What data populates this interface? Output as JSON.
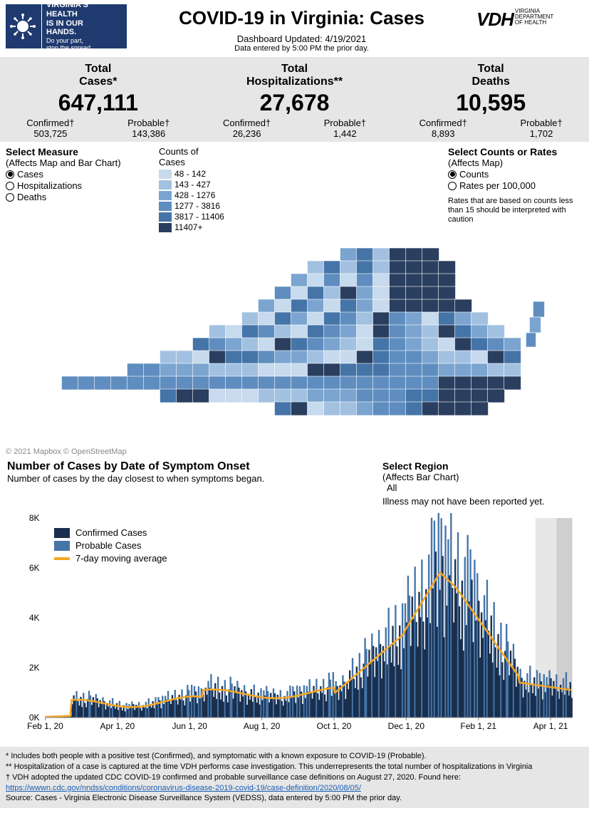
{
  "logo": {
    "line1": "VIRGINIA'S",
    "line2": "HEALTH",
    "line3": "IS IN OUR",
    "line4": "HANDS.",
    "line5": "Do your part,",
    "line6": "stop the spread."
  },
  "title": "COVID-19 in Virginia: Cases",
  "updated": "Dashboard Updated: 4/19/2021",
  "data_entered": "Data entered by 5:00 PM the prior day.",
  "vdh": {
    "main": "VDH",
    "l1": "VIRGINIA",
    "l2": "DEPARTMENT",
    "l3": "OF HEALTH"
  },
  "stats": [
    {
      "label": "Total",
      "label2": "Cases*",
      "value": "647,111",
      "confirmed_lbl": "Confirmed†",
      "confirmed": "503,725",
      "probable_lbl": "Probable†",
      "probable": "143,386"
    },
    {
      "label": "Total",
      "label2": "Hospitalizations**",
      "value": "27,678",
      "confirmed_lbl": "Confirmed†",
      "confirmed": "26,236",
      "probable_lbl": "Probable†",
      "probable": "1,442"
    },
    {
      "label": "Total",
      "label2": "Deaths",
      "value": "10,595",
      "confirmed_lbl": "Confirmed†",
      "confirmed": "8,893",
      "probable_lbl": "Probable†",
      "probable": "1,702"
    }
  ],
  "measure": {
    "title": "Select Measure",
    "affects": "(Affects Map and Bar Chart)",
    "options": [
      "Cases",
      "Hospitalizations",
      "Deaths"
    ],
    "selected": 0
  },
  "legend": {
    "title": "Counts of",
    "title2": "Cases",
    "bins": [
      {
        "label": "48 - 142",
        "color": "#c8daed"
      },
      {
        "label": "143 - 427",
        "color": "#a2c1e1"
      },
      {
        "label": "428 - 1276",
        "color": "#7ba5d0"
      },
      {
        "label": "1277 - 3816",
        "color": "#5f8dbf"
      },
      {
        "label": "3817 - 11406",
        "color": "#4574a8"
      },
      {
        "label": "11407+",
        "color": "#2a3f5f"
      }
    ]
  },
  "counts": {
    "title": "Select Counts or Rates",
    "affects": "(Affects Map)",
    "options": [
      "Counts",
      "Rates per 100,000"
    ],
    "selected": 0,
    "note": "Rates that are based on counts less than 15 should be interpreted with caution"
  },
  "map_attrib": "© 2021 Mapbox © OpenStreetMap",
  "chart": {
    "title": "Number of Cases by Date of Symptom Onset",
    "subtitle": "Number of cases by the day closest to when symptoms began.",
    "region_title": "Select Region",
    "region_affects": "(Affects Bar Chart)",
    "region_value": "All",
    "region_note": "Illness may not have been reported yet.",
    "legend": [
      {
        "label": "Confirmed Cases",
        "color": "#1a2f4d",
        "type": "sw"
      },
      {
        "label": "Probable Cases",
        "color": "#4574a8",
        "type": "sw"
      },
      {
        "label": "7-day moving average",
        "color": "#f5a623",
        "type": "line"
      }
    ],
    "ylim": [
      0,
      8000
    ],
    "ytick_step": 2000,
    "xlabels": [
      "Feb 1, 20",
      "Apr 1, 20",
      "Jun 1, 20",
      "Aug 1, 20",
      "Oct 1, 20",
      "Dec 1, 20",
      "Feb 1, 21",
      "Apr 1, 21"
    ],
    "background": "#ffffff"
  },
  "footnotes": {
    "f1": "* Includes both people with a positive test (Confirmed), and symptomatic with a known exposure to COVID-19 (Probable).",
    "f2": "** Hospitalization of a case is captured at the time VDH performs case investigation. This underrepresents the total number of hospitalizations in Virginia",
    "f3": "† VDH adopted the updated CDC COVID-19 confirmed and probable surveillance case definitions on August 27, 2020. Found here:",
    "link": "https://wwwn.cdc.gov/nndss/conditions/coronavirus-disease-2019-covid-19/case-definition/2020/08/05/",
    "f4": "Source:  Cases - Virginia Electronic Disease Surveillance System (VEDSS), data entered by 5:00 PM the prior day."
  }
}
